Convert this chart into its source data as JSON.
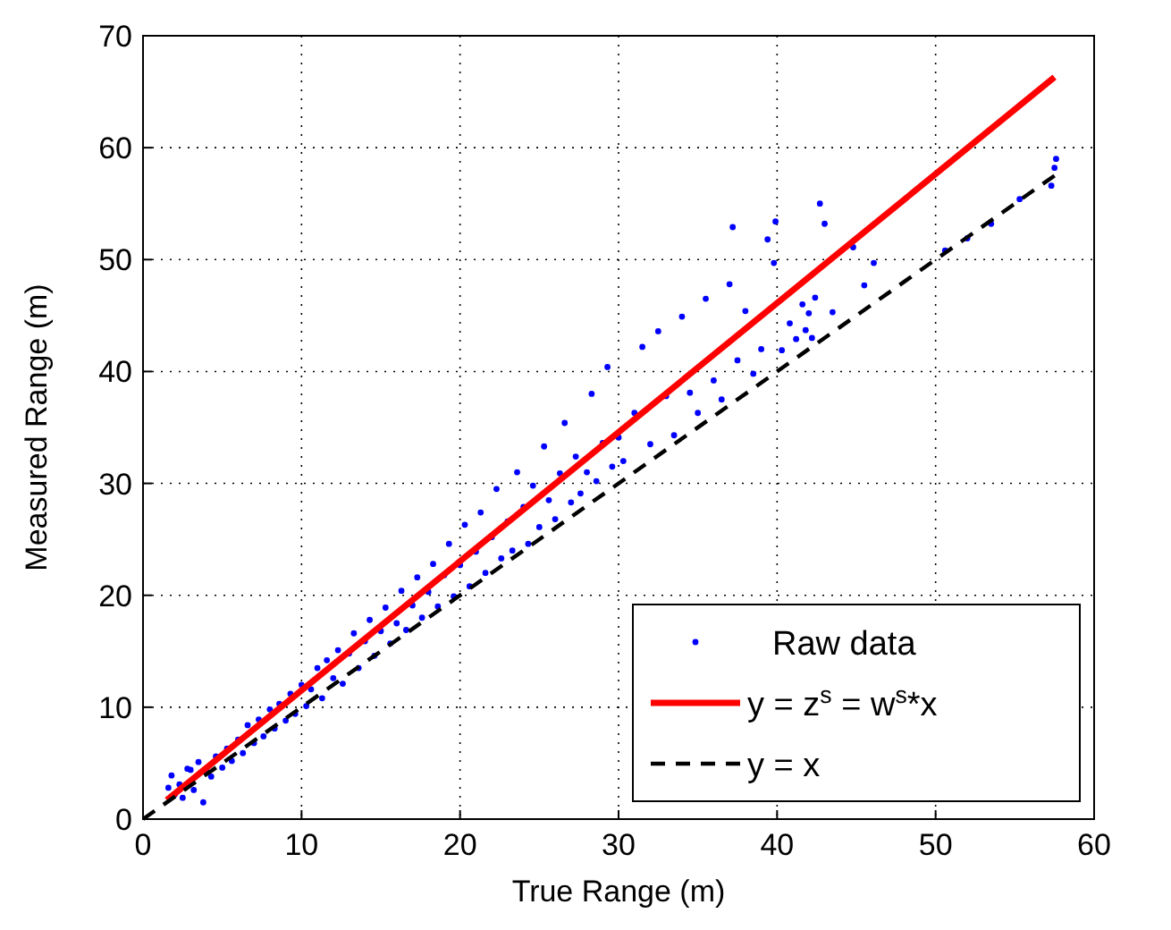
{
  "chart_data": {
    "type": "scatter",
    "xlabel": "True Range (m)",
    "ylabel": "Measured Range (m)",
    "xlim": [
      0,
      60
    ],
    "ylim": [
      0,
      70
    ],
    "xticks": [
      0,
      10,
      20,
      30,
      40,
      50,
      60
    ],
    "yticks": [
      0,
      10,
      20,
      30,
      40,
      50,
      60,
      70
    ],
    "grid": true,
    "legend": "bottom right",
    "series": [
      {
        "name": "Raw data",
        "color": "#0000ff",
        "marker": "circle",
        "x": [
          1.6,
          1.8,
          2.0,
          2.3,
          2.5,
          2.8,
          3.0,
          3.2,
          3.5,
          3.8,
          4.0,
          4.3,
          4.6,
          5.0,
          5.3,
          5.6,
          6.0,
          6.3,
          6.6,
          7.0,
          7.3,
          7.6,
          8.0,
          8.3,
          8.6,
          9.0,
          9.3,
          9.6,
          10.0,
          10.3,
          10.6,
          11.0,
          11.3,
          11.6,
          12.0,
          12.3,
          12.6,
          13.0,
          13.3,
          13.6,
          14.0,
          14.3,
          14.6,
          15.0,
          15.3,
          15.6,
          16.0,
          16.3,
          16.6,
          17.0,
          17.3,
          17.6,
          18.0,
          18.3,
          18.6,
          19.0,
          19.3,
          19.6,
          20.0,
          20.3,
          20.6,
          21.0,
          21.3,
          21.6,
          22.0,
          22.3,
          22.6,
          23.0,
          23.3,
          23.6,
          24.0,
          24.3,
          24.6,
          25.0,
          25.3,
          25.6,
          26.0,
          26.3,
          26.6,
          27.0,
          27.3,
          27.6,
          28.0,
          28.3,
          28.6,
          29.0,
          29.3,
          29.6,
          30.0,
          30.3,
          31.0,
          31.5,
          32.0,
          32.5,
          33.0,
          33.5,
          34.0,
          34.5,
          35.0,
          35.5,
          36.0,
          36.5,
          37.0,
          37.2,
          37.5,
          38.0,
          38.5,
          39.0,
          39.4,
          39.8,
          39.9,
          40.3,
          40.8,
          41.2,
          41.6,
          41.8,
          42.0,
          42.2,
          42.4,
          42.7,
          43.0,
          43.5,
          44.8,
          45.5,
          46.1,
          50.6,
          52.0,
          53.5,
          55.3,
          57.3,
          57.5,
          57.6
        ],
        "values": [
          2.8,
          3.9,
          2.2,
          3.1,
          1.9,
          4.5,
          4.4,
          2.6,
          5.1,
          1.5,
          4.2,
          3.8,
          5.6,
          4.6,
          6.3,
          5.2,
          7.1,
          5.9,
          8.4,
          6.8,
          8.9,
          7.4,
          9.8,
          8.1,
          10.3,
          8.8,
          11.2,
          9.4,
          12.0,
          10.1,
          11.6,
          13.5,
          10.8,
          14.2,
          12.6,
          15.1,
          12.1,
          14.8,
          16.6,
          13.5,
          15.9,
          17.8,
          14.6,
          16.8,
          18.9,
          15.7,
          17.5,
          20.4,
          16.9,
          19.1,
          21.6,
          18.0,
          20.3,
          22.8,
          19.0,
          21.8,
          24.6,
          19.9,
          22.7,
          26.3,
          20.8,
          23.9,
          27.4,
          22.0,
          25.2,
          29.5,
          23.3,
          26.6,
          24.0,
          31.0,
          27.9,
          24.6,
          29.8,
          26.1,
          33.3,
          28.5,
          26.8,
          30.9,
          35.4,
          28.3,
          32.4,
          29.1,
          31.0,
          38.0,
          30.2,
          33.6,
          40.4,
          31.5,
          34.1,
          32.0,
          36.3,
          42.2,
          33.5,
          43.6,
          37.8,
          34.3,
          44.9,
          38.1,
          36.3,
          46.5,
          39.2,
          37.5,
          47.8,
          52.9,
          41.0,
          45.4,
          39.8,
          42.0,
          51.8,
          49.7,
          53.4,
          41.9,
          44.3,
          42.9,
          46.0,
          43.7,
          45.2,
          43.0,
          46.6,
          55.0,
          53.2,
          45.3,
          51.1,
          47.7,
          49.7,
          50.8,
          51.9,
          53.2,
          55.4,
          56.6,
          58.2,
          59.0
        ]
      },
      {
        "name": "y = z$^{s}$ = w$^{s}$*x",
        "type": "line",
        "color": "#ff0000",
        "line_style": "solid",
        "x": [
          1.5,
          57.5
        ],
        "values": [
          1.7,
          66.3
        ]
      },
      {
        "name": "y = x",
        "type": "line",
        "color": "#000000",
        "line_style": "dashed",
        "x": [
          0,
          57.5
        ],
        "values": [
          0,
          57.5
        ]
      }
    ]
  }
}
